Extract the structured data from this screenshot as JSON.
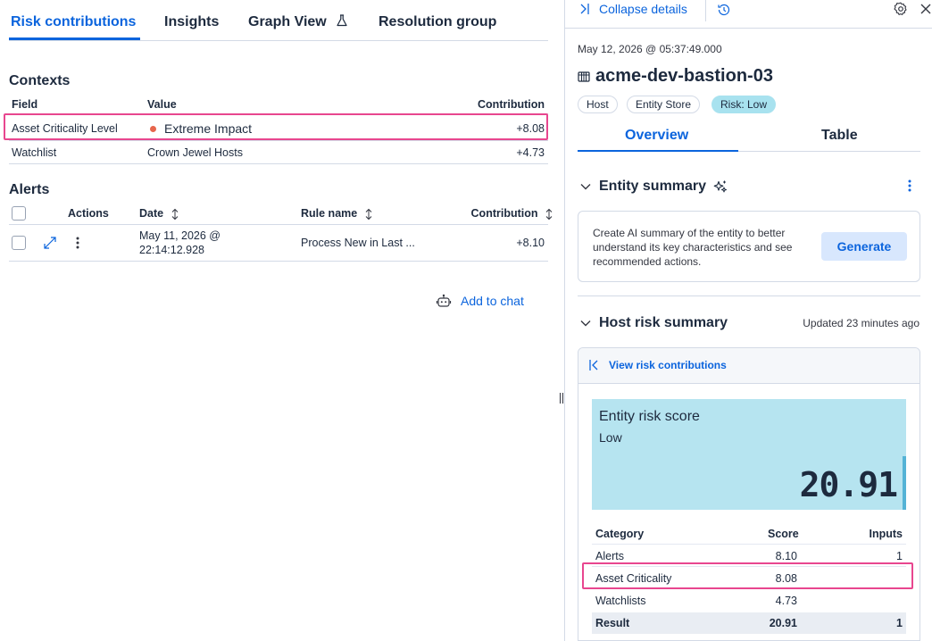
{
  "left": {
    "tabs": [
      {
        "label": "Risk contributions"
      },
      {
        "label": "Insights"
      },
      {
        "label": "Graph View"
      },
      {
        "label": "Resolution group"
      }
    ],
    "contexts": {
      "title": "Contexts",
      "headers": {
        "field": "Field",
        "value": "Value",
        "contribution": "Contribution"
      },
      "rows": [
        {
          "field": "Asset Criticality Level",
          "value": "Extreme Impact",
          "contribution": "+8.08"
        },
        {
          "field": "Watchlist",
          "value": "Crown Jewel Hosts",
          "contribution": "+4.73"
        }
      ]
    },
    "alerts": {
      "title": "Alerts",
      "headers": {
        "actions": "Actions",
        "date": "Date",
        "rule": "Rule name",
        "contribution": "Contribution"
      },
      "rows": [
        {
          "date_line1": "May 11, 2026 @",
          "date_line2": "22:14:12.928",
          "rule": "Process New in Last ...",
          "contribution": "+8.10"
        }
      ]
    },
    "add_chat_label": "Add to chat"
  },
  "right": {
    "collapse_label": "Collapse details",
    "timestamp": "May 12, 2026 @ 05:37:49.000",
    "entity_name": "acme-dev-bastion-03",
    "badges": [
      "Host",
      "Entity Store",
      "Risk: Low"
    ],
    "tabs": [
      "Overview",
      "Table"
    ],
    "entity_summary": {
      "title": "Entity summary",
      "description": "Create AI summary of the entity to better understand its key characteristics and see recommended actions.",
      "button": "Generate"
    },
    "host_risk": {
      "title": "Host risk summary",
      "updated": "Updated 23 minutes ago",
      "view_link": "View risk contributions",
      "score_title": "Entity risk score",
      "score_level": "Low",
      "score_value": "20.91",
      "table": {
        "headers": {
          "category": "Category",
          "score": "Score",
          "inputs": "Inputs"
        },
        "rows": [
          {
            "category": "Alerts",
            "score": "8.10",
            "inputs": "1"
          },
          {
            "category": "Asset Criticality",
            "score": "8.08",
            "inputs": ""
          },
          {
            "category": "Watchlists",
            "score": "4.73",
            "inputs": ""
          },
          {
            "category": "Result",
            "score": "20.91",
            "inputs": "1"
          }
        ]
      }
    }
  },
  "colors": {
    "accent": "#0b64dd",
    "highlight": "#e8468f",
    "risk_low_badge": "#a8e2ef",
    "score_card": "#b6e4f0"
  }
}
